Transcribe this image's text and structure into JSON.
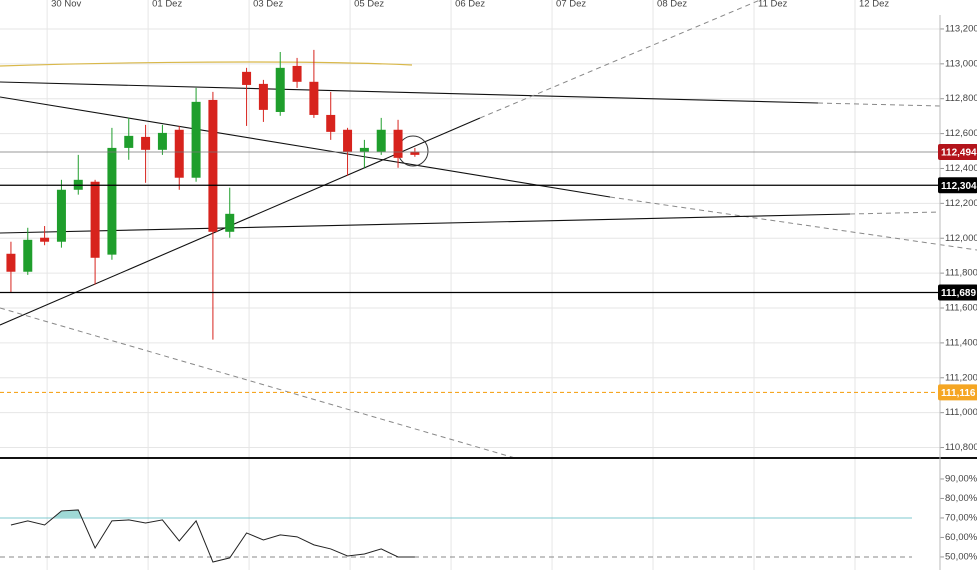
{
  "chart_data": [
    {
      "type": "candlestick",
      "x": [
        0,
        1,
        2,
        3,
        4,
        5,
        6,
        7,
        8,
        9,
        10,
        11,
        12,
        13,
        14,
        15,
        16,
        17,
        18,
        19,
        20,
        21,
        22,
        23,
        24
      ],
      "open": [
        111.911,
        111.808,
        112.003,
        111.98,
        112.278,
        112.324,
        111.906,
        112.518,
        112.581,
        112.507,
        112.622,
        112.347,
        112.793,
        112.037,
        112.954,
        112.885,
        112.724,
        112.988,
        112.897,
        112.707,
        112.622,
        112.496,
        112.496,
        112.622,
        112.496
      ],
      "high": [
        111.98,
        112.06,
        112.07,
        112.335,
        112.478,
        112.335,
        112.633,
        112.69,
        112.65,
        112.65,
        112.644,
        112.862,
        112.839,
        112.29,
        112.977,
        112.908,
        113.068,
        113.034,
        113.08,
        112.839,
        112.633,
        112.564,
        112.69,
        112.679,
        112.518
      ],
      "low": [
        111.69,
        111.79,
        111.96,
        111.946,
        112.25,
        111.734,
        111.877,
        112.45,
        112.318,
        112.478,
        112.278,
        112.324,
        111.419,
        112.003,
        112.644,
        112.667,
        112.702,
        112.862,
        112.69,
        112.564,
        112.358,
        112.404,
        112.478,
        112.404,
        112.467
      ],
      "close": [
        111.808,
        111.991,
        111.98,
        112.278,
        112.335,
        111.888,
        112.518,
        112.587,
        112.507,
        112.604,
        112.347,
        112.782,
        112.037,
        112.14,
        112.879,
        112.736,
        112.977,
        112.897,
        112.707,
        112.61,
        112.496,
        112.518,
        112.622,
        112.461,
        112.478
      ],
      "up_color": "#1f9e2c",
      "down_color": "#d7231d",
      "xlim": [
        -0.65,
        55.2
      ],
      "xticks": [
        {
          "value": 2.15,
          "label": "30 Nov"
        },
        {
          "value": 8.15,
          "label": "01 Dez"
        },
        {
          "value": 14.15,
          "label": "03 Dez"
        },
        {
          "value": 20.15,
          "label": "05 Dez"
        },
        {
          "value": 26.15,
          "label": "06 Dez"
        },
        {
          "value": 32.15,
          "label": "07 Dez"
        },
        {
          "value": 38.15,
          "label": "08 Dez"
        },
        {
          "value": 44.15,
          "label": "11 Dez"
        },
        {
          "value": 50.15,
          "label": "12 Dez"
        }
      ],
      "ylim": [
        110.74,
        113.28
      ],
      "yticks": [
        {
          "value": 110.8,
          "label": "110,800"
        },
        {
          "value": 111.0,
          "label": "111,000"
        },
        {
          "value": 111.2,
          "label": "111,200"
        },
        {
          "value": 111.4,
          "label": "111,400"
        },
        {
          "value": 111.6,
          "label": "111,600"
        },
        {
          "value": 111.8,
          "label": "111,800"
        },
        {
          "value": 112.0,
          "label": "112,000"
        },
        {
          "value": 112.2,
          "label": "112,200"
        },
        {
          "value": 112.4,
          "label": "112,400"
        },
        {
          "value": 112.6,
          "label": "112,600"
        },
        {
          "value": 112.8,
          "label": "112,800"
        },
        {
          "value": 113.0,
          "label": "113,000"
        },
        {
          "value": 113.2,
          "label": "113,200"
        }
      ],
      "grid": true,
      "last_price": {
        "value": 112.4945,
        "label": "112,4945",
        "color": "#b3141b"
      },
      "price_lines": [
        {
          "value": 112.304,
          "label": "112,304",
          "color": "#000000"
        },
        {
          "value": 111.689,
          "label": "111,689",
          "color": "#000000"
        }
      ],
      "alert_line": {
        "value": 111.116,
        "label": "111,116",
        "color": "#f5a623"
      }
    },
    {
      "type": "line",
      "x": [
        0,
        1,
        2,
        3,
        4,
        5,
        6,
        7,
        8,
        9,
        10,
        11,
        12,
        13,
        14,
        15,
        16,
        17,
        18,
        19,
        20,
        21,
        22,
        23,
        24
      ],
      "values": [
        66.4,
        68.5,
        66.4,
        73.6,
        74.1,
        54.6,
        68.5,
        69.0,
        67.4,
        69.0,
        58.2,
        68.5,
        47.4,
        49.5,
        62.3,
        58.7,
        61.3,
        60.3,
        56.2,
        54.1,
        50.5,
        51.5,
        54.1,
        50.0,
        50.0
      ],
      "color": "#222222",
      "xlim": [
        -0.65,
        55.2
      ],
      "ylim": [
        43.3,
        98.7
      ],
      "yticks": [
        {
          "value": 50,
          "label": "50,00%"
        },
        {
          "value": 60,
          "label": "60,00%"
        },
        {
          "value": 70,
          "label": "70,00%"
        },
        {
          "value": 80,
          "label": "80,00%"
        },
        {
          "value": 90,
          "label": "90,00%"
        }
      ],
      "upper_level": 70,
      "lower_level": 50
    }
  ]
}
